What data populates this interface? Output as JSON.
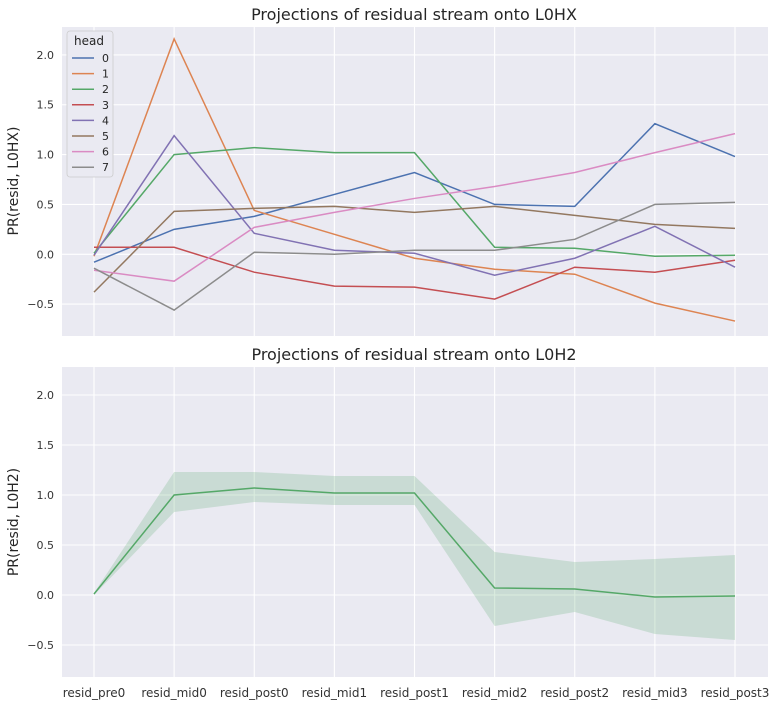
{
  "chart_data": [
    {
      "type": "line",
      "title": "Projections of residual stream onto L0HX",
      "xlabel": "",
      "ylabel": "PR(resid, L0HX)",
      "ylim": [
        -0.82,
        2.28
      ],
      "yticks": [
        -0.5,
        0.0,
        0.5,
        1.0,
        1.5,
        2.0
      ],
      "ytick_labels": [
        "−0.5",
        "0.0",
        "0.5",
        "1.0",
        "1.5",
        "2.0"
      ],
      "categories": [
        "resid_pre0",
        "resid_mid0",
        "resid_post0",
        "resid_mid1",
        "resid_post1",
        "resid_mid2",
        "resid_post2",
        "resid_mid3",
        "resid_post3"
      ],
      "legend": {
        "title": "head",
        "placement": "top-left"
      },
      "grid": true,
      "series": [
        {
          "name": "0",
          "color": "#4c72b0",
          "values": [
            -0.08,
            0.25,
            0.38,
            0.6,
            0.82,
            0.5,
            0.48,
            1.31,
            0.98
          ]
        },
        {
          "name": "1",
          "color": "#dd8452",
          "values": [
            -0.02,
            2.16,
            0.44,
            0.2,
            -0.04,
            -0.15,
            -0.2,
            -0.49,
            -0.67
          ]
        },
        {
          "name": "2",
          "color": "#55a868",
          "values": [
            0.01,
            1.0,
            1.07,
            1.02,
            1.02,
            0.07,
            0.06,
            -0.02,
            -0.01
          ]
        },
        {
          "name": "3",
          "color": "#c44e52",
          "values": [
            0.07,
            0.07,
            -0.18,
            -0.32,
            -0.33,
            -0.45,
            -0.13,
            -0.18,
            -0.06
          ]
        },
        {
          "name": "4",
          "color": "#8172b3",
          "values": [
            -0.01,
            1.19,
            0.21,
            0.04,
            0.01,
            -0.21,
            -0.04,
            0.28,
            -0.13
          ]
        },
        {
          "name": "5",
          "color": "#937860",
          "values": [
            -0.38,
            0.43,
            0.46,
            0.48,
            0.42,
            0.48,
            0.39,
            0.3,
            0.26
          ]
        },
        {
          "name": "6",
          "color": "#da8bc3",
          "values": [
            -0.16,
            -0.27,
            0.27,
            0.42,
            0.56,
            0.68,
            0.82,
            1.02,
            1.21
          ]
        },
        {
          "name": "7",
          "color": "#8c8c8c",
          "values": [
            -0.14,
            -0.56,
            0.02,
            0.0,
            0.04,
            0.04,
            0.15,
            0.5,
            0.52
          ]
        }
      ]
    },
    {
      "type": "line",
      "title": "Projections of residual stream onto L0H2",
      "xlabel": "",
      "ylabel": "PR(resid, L0H2)",
      "ylim": [
        -0.82,
        2.28
      ],
      "yticks": [
        -0.5,
        0.0,
        0.5,
        1.0,
        1.5,
        2.0
      ],
      "ytick_labels": [
        "−0.5",
        "0.0",
        "0.5",
        "1.0",
        "1.5",
        "2.0"
      ],
      "categories": [
        "resid_pre0",
        "resid_mid0",
        "resid_post0",
        "resid_mid1",
        "resid_post1",
        "resid_mid2",
        "resid_post2",
        "resid_mid3",
        "resid_post3"
      ],
      "grid": true,
      "series": [
        {
          "color": "#55a868",
          "values": [
            0.01,
            1.0,
            1.07,
            1.02,
            1.02,
            0.07,
            0.06,
            -0.02,
            -0.01
          ],
          "band_upper": [
            0.02,
            1.23,
            1.23,
            1.19,
            1.19,
            0.43,
            0.33,
            0.36,
            0.4
          ],
          "band_lower": [
            0.0,
            0.83,
            0.93,
            0.9,
            0.9,
            -0.31,
            -0.17,
            -0.39,
            -0.45
          ]
        }
      ]
    }
  ]
}
